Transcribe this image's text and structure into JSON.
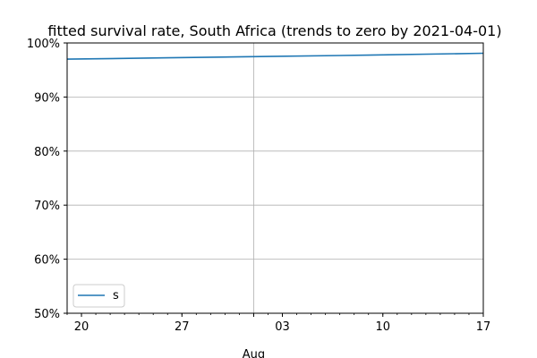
{
  "chart_data": {
    "type": "line",
    "title": "fitted survival rate, South Africa (trends to zero by 2021-04-01)",
    "xlabel": "",
    "ylabel": "",
    "x_range": [
      "2020-07-19",
      "2020-08-17"
    ],
    "ylim": [
      0.5,
      1.0
    ],
    "y_format": "percent",
    "y_ticks": [
      0.5,
      0.6,
      0.7,
      0.8,
      0.9,
      1.0
    ],
    "y_tick_labels": [
      "50%",
      "60%",
      "70%",
      "80%",
      "90%",
      "100%"
    ],
    "x_ticks": [
      "2020-07-20",
      "2020-07-27",
      "2020-08-03",
      "2020-08-10",
      "2020-08-17"
    ],
    "x_tick_labels": [
      "20",
      "27",
      "03",
      "10",
      "17"
    ],
    "x_month_marker": {
      "date": "2020-08-01",
      "label": "Aug"
    },
    "grid": "on",
    "legend_placement": "lower-left",
    "series": [
      {
        "name": "s",
        "color": "#1f77b4",
        "x": [
          "2020-07-19",
          "2020-07-26",
          "2020-08-02",
          "2020-08-09",
          "2020-08-17"
        ],
        "values": [
          0.97,
          0.9725,
          0.975,
          0.9775,
          0.981
        ]
      }
    ]
  }
}
